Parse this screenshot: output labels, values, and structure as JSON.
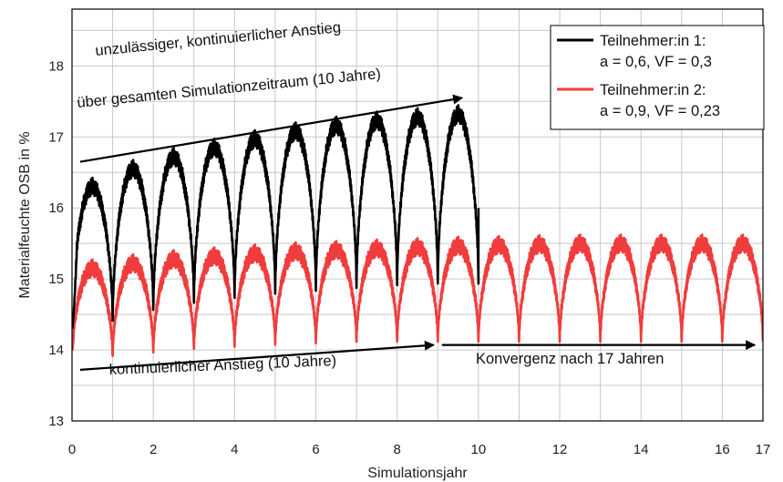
{
  "chart_data": {
    "type": "line",
    "title": "",
    "xlabel": "Simulationsjahr",
    "ylabel": "Materialfeuchte OSB in %",
    "xlim": [
      0,
      17
    ],
    "ylim": [
      13,
      18.8
    ],
    "x_ticks": [
      "0",
      "2",
      "4",
      "6",
      "8",
      "10",
      "12",
      "14",
      "16",
      "17"
    ],
    "y_ticks": [
      "13",
      "14",
      "15",
      "16",
      "17",
      "18"
    ],
    "grid": true,
    "legend": {
      "position": "top-right",
      "entries": [
        {
          "line1": "Teilnehmer:in 1:",
          "line2": "a = 0,6, VF = 0,3",
          "color": "#000000"
        },
        {
          "line1": "Teilnehmer:in 2:",
          "line2": "a = 0,9, VF = 0,23",
          "color": "#f03c3c"
        }
      ]
    },
    "series": [
      {
        "name": "Teilnehmer:in 1: a = 0,6, VF = 0,3",
        "color": "#000000",
        "x_end": 10,
        "annual_peaks": [
          16.3,
          16.55,
          16.72,
          16.85,
          16.97,
          17.08,
          17.16,
          17.23,
          17.28,
          17.32
        ],
        "annual_minima": [
          14.3,
          14.4,
          14.55,
          14.65,
          14.72,
          14.78,
          14.82,
          14.86,
          14.9,
          14.92
        ],
        "final_value": 16.0
      },
      {
        "name": "Teilnehmer:in 2: a = 0,9, VF = 0,23",
        "color": "#f03c3c",
        "x_end": 17,
        "annual_peaks": [
          15.15,
          15.22,
          15.28,
          15.32,
          15.36,
          15.39,
          15.41,
          15.43,
          15.45,
          15.47,
          15.48,
          15.49,
          15.5,
          15.5,
          15.5,
          15.5,
          15.5
        ],
        "annual_minima": [
          13.85,
          13.9,
          13.95,
          14.0,
          14.03,
          14.06,
          14.08,
          14.1,
          14.1,
          14.1,
          14.1,
          14.1,
          14.1,
          14.1,
          14.1,
          14.1,
          14.1
        ],
        "start_value": 14.0
      }
    ],
    "annotations": [
      {
        "id": "upper_line1",
        "text": "unzulässiger, kontinuierlicher Anstieg"
      },
      {
        "id": "upper_line2",
        "text": "über gesamten Simulationzeitraum (10 Jahre)",
        "arrow_from": [
          0.2,
          16.65
        ],
        "arrow_to": [
          9.6,
          17.55
        ]
      },
      {
        "id": "lower_left",
        "text": "kontinuierlicher Anstieg (10 Jahre)",
        "arrow_from": [
          0.2,
          13.72
        ],
        "arrow_to": [
          8.9,
          14.07
        ]
      },
      {
        "id": "lower_right",
        "text": "Konvergenz nach 17 Jahren",
        "arrow_from": [
          9.1,
          14.07
        ],
        "arrow_to": [
          16.8,
          14.07
        ]
      }
    ]
  }
}
